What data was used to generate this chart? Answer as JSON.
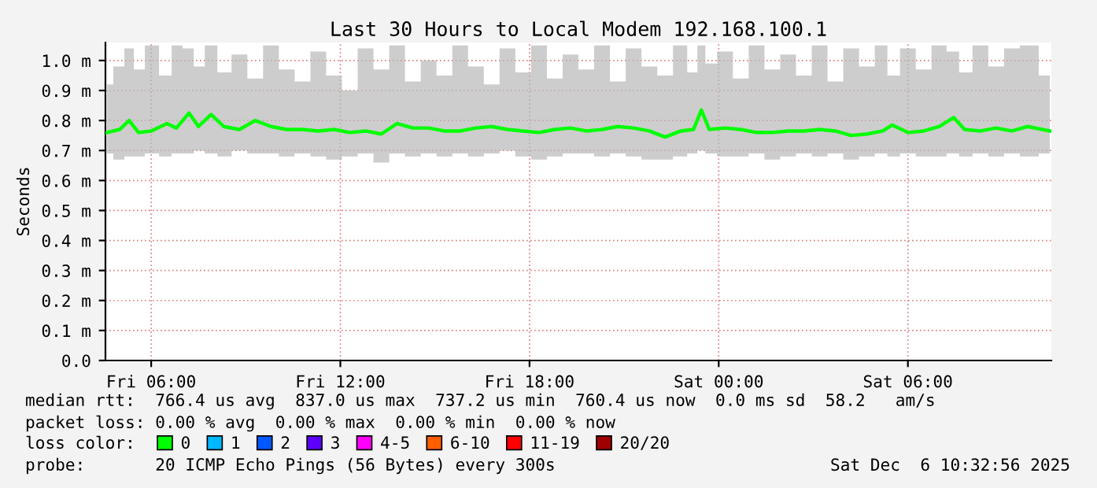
{
  "chart_data": {
    "type": "line",
    "title": "Last 30 Hours to Local Modem 192.168.100.1",
    "ylabel": "Seconds",
    "x": [
      "2025-12-05T04:36",
      "2025-12-05T05:00",
      "2025-12-05T05:18",
      "2025-12-05T05:36",
      "2025-12-05T06:00",
      "2025-12-05T06:30",
      "2025-12-05T06:48",
      "2025-12-05T07:12",
      "2025-12-05T07:30",
      "2025-12-05T07:54",
      "2025-12-05T08:18",
      "2025-12-05T08:48",
      "2025-12-05T09:18",
      "2025-12-05T09:48",
      "2025-12-05T10:18",
      "2025-12-05T10:48",
      "2025-12-05T11:18",
      "2025-12-05T11:48",
      "2025-12-05T12:18",
      "2025-12-05T12:48",
      "2025-12-05T13:18",
      "2025-12-05T13:48",
      "2025-12-05T14:18",
      "2025-12-05T14:48",
      "2025-12-05T15:18",
      "2025-12-05T15:48",
      "2025-12-05T16:18",
      "2025-12-05T16:48",
      "2025-12-05T17:18",
      "2025-12-05T17:48",
      "2025-12-05T18:18",
      "2025-12-05T18:48",
      "2025-12-05T19:18",
      "2025-12-05T19:48",
      "2025-12-05T20:18",
      "2025-12-05T20:48",
      "2025-12-05T21:18",
      "2025-12-05T21:48",
      "2025-12-05T22:18",
      "2025-12-05T22:48",
      "2025-12-05T23:12",
      "2025-12-05T23:27",
      "2025-12-05T23:42",
      "2025-12-06T00:12",
      "2025-12-06T00:42",
      "2025-12-06T01:12",
      "2025-12-06T01:42",
      "2025-12-06T02:12",
      "2025-12-06T02:42",
      "2025-12-06T03:12",
      "2025-12-06T03:42",
      "2025-12-06T04:12",
      "2025-12-06T04:42",
      "2025-12-06T05:12",
      "2025-12-06T05:30",
      "2025-12-06T06:00",
      "2025-12-06T06:30",
      "2025-12-06T07:00",
      "2025-12-06T07:27",
      "2025-12-06T07:48",
      "2025-12-06T08:18",
      "2025-12-06T08:48",
      "2025-12-06T09:18",
      "2025-12-06T09:48",
      "2025-12-06T10:30"
    ],
    "series": [
      {
        "name": "0",
        "color": "#00ff00",
        "values": [
          0.76,
          0.77,
          0.8,
          0.76,
          0.765,
          0.79,
          0.775,
          0.825,
          0.78,
          0.82,
          0.78,
          0.77,
          0.8,
          0.78,
          0.77,
          0.77,
          0.765,
          0.77,
          0.76,
          0.765,
          0.755,
          0.79,
          0.775,
          0.775,
          0.765,
          0.765,
          0.775,
          0.78,
          0.77,
          0.765,
          0.76,
          0.77,
          0.775,
          0.765,
          0.77,
          0.78,
          0.775,
          0.765,
          0.745,
          0.765,
          0.77,
          0.835,
          0.77,
          0.775,
          0.77,
          0.76,
          0.76,
          0.765,
          0.765,
          0.77,
          0.765,
          0.75,
          0.755,
          0.765,
          0.785,
          0.76,
          0.765,
          0.78,
          0.81,
          0.77,
          0.765,
          0.775,
          0.765,
          0.78,
          0.765
        ],
        "lower": [
          0.69,
          0.67,
          0.68,
          0.68,
          0.69,
          0.68,
          0.69,
          0.69,
          0.7,
          0.69,
          0.68,
          0.7,
          0.69,
          0.69,
          0.68,
          0.69,
          0.68,
          0.67,
          0.68,
          0.69,
          0.66,
          0.69,
          0.68,
          0.69,
          0.68,
          0.69,
          0.68,
          0.69,
          0.7,
          0.68,
          0.67,
          0.68,
          0.69,
          0.69,
          0.68,
          0.69,
          0.68,
          0.67,
          0.67,
          0.68,
          0.69,
          0.7,
          0.69,
          0.68,
          0.68,
          0.69,
          0.67,
          0.68,
          0.69,
          0.68,
          0.69,
          0.67,
          0.68,
          0.69,
          0.68,
          0.69,
          0.68,
          0.68,
          0.69,
          0.68,
          0.69,
          0.68,
          0.69,
          0.68,
          0.69
        ],
        "upper": [
          0.92,
          0.98,
          1.04,
          0.97,
          1.05,
          0.95,
          1.05,
          1.04,
          0.98,
          1.05,
          0.96,
          1.02,
          0.94,
          1.05,
          0.97,
          0.93,
          1.03,
          0.95,
          0.9,
          1.04,
          0.97,
          1.05,
          0.93,
          1.0,
          0.95,
          1.05,
          0.98,
          0.92,
          1.04,
          0.96,
          1.05,
          0.94,
          1.02,
          0.97,
          1.05,
          0.93,
          1.04,
          0.98,
          0.95,
          1.05,
          0.96,
          1.05,
          0.99,
          1.03,
          0.94,
          1.05,
          0.97,
          1.02,
          0.95,
          1.05,
          0.93,
          1.04,
          0.98,
          1.05,
          0.95,
          1.04,
          0.97,
          1.05,
          1.03,
          0.96,
          1.05,
          0.98,
          1.04,
          1.05,
          0.95
        ]
      },
      {
        "name": "1",
        "color": "#00b8ff",
        "values": [
          null,
          null,
          null,
          null,
          null,
          null,
          null,
          null,
          null,
          null,
          null,
          null,
          null,
          null,
          null,
          null,
          null,
          null,
          null,
          null,
          null,
          null,
          null,
          null,
          null,
          null,
          null,
          null,
          null,
          null,
          null,
          null,
          null,
          null,
          null,
          null,
          null,
          null,
          null,
          null,
          null,
          null,
          null,
          null,
          null,
          null,
          null,
          null,
          null,
          null,
          null,
          null,
          null,
          null,
          null,
          null,
          null,
          null,
          null,
          null,
          null,
          null,
          null,
          null,
          null
        ]
      },
      {
        "name": "2",
        "color": "#0059ff",
        "values": [
          null,
          null,
          null,
          null,
          null,
          null,
          null,
          null,
          null,
          null,
          null,
          null,
          null,
          null,
          null,
          null,
          null,
          null,
          null,
          null,
          null,
          null,
          null,
          null,
          null,
          null,
          null,
          null,
          null,
          null,
          null,
          null,
          null,
          null,
          null,
          null,
          null,
          null,
          null,
          null,
          null,
          null,
          null,
          null,
          null,
          null,
          null,
          null,
          null,
          null,
          null,
          null,
          null,
          null,
          null,
          null,
          null,
          null,
          null,
          null,
          null,
          null,
          null,
          null,
          null
        ]
      },
      {
        "name": "3",
        "color": "#5e00ff",
        "values": [
          null,
          null,
          null,
          null,
          null,
          null,
          null,
          null,
          null,
          null,
          null,
          null,
          null,
          null,
          null,
          null,
          null,
          null,
          null,
          null,
          null,
          null,
          null,
          null,
          null,
          null,
          null,
          null,
          null,
          null,
          null,
          null,
          null,
          null,
          null,
          null,
          null,
          null,
          null,
          null,
          null,
          null,
          null,
          null,
          null,
          null,
          null,
          null,
          null,
          null,
          null,
          null,
          null,
          null,
          null,
          null,
          null,
          null,
          null,
          null,
          null,
          null,
          null,
          null,
          null
        ]
      },
      {
        "name": "4-5",
        "color": "#ff00ff",
        "values": [
          null,
          null,
          null,
          null,
          null,
          null,
          null,
          null,
          null,
          null,
          null,
          null,
          null,
          null,
          null,
          null,
          null,
          null,
          null,
          null,
          null,
          null,
          null,
          null,
          null,
          null,
          null,
          null,
          null,
          null,
          null,
          null,
          null,
          null,
          null,
          null,
          null,
          null,
          null,
          null,
          null,
          null,
          null,
          null,
          null,
          null,
          null,
          null,
          null,
          null,
          null,
          null,
          null,
          null,
          null,
          null,
          null,
          null,
          null,
          null,
          null,
          null,
          null,
          null,
          null
        ]
      },
      {
        "name": "6-10",
        "color": "#ff5e00",
        "values": [
          null,
          null,
          null,
          null,
          null,
          null,
          null,
          null,
          null,
          null,
          null,
          null,
          null,
          null,
          null,
          null,
          null,
          null,
          null,
          null,
          null,
          null,
          null,
          null,
          null,
          null,
          null,
          null,
          null,
          null,
          null,
          null,
          null,
          null,
          null,
          null,
          null,
          null,
          null,
          null,
          null,
          null,
          null,
          null,
          null,
          null,
          null,
          null,
          null,
          null,
          null,
          null,
          null,
          null,
          null,
          null,
          null,
          null,
          null,
          null,
          null,
          null,
          null,
          null,
          null
        ]
      },
      {
        "name": "11-19",
        "color": "#ff0000",
        "values": [
          null,
          null,
          null,
          null,
          null,
          null,
          null,
          null,
          null,
          null,
          null,
          null,
          null,
          null,
          null,
          null,
          null,
          null,
          null,
          null,
          null,
          null,
          null,
          null,
          null,
          null,
          null,
          null,
          null,
          null,
          null,
          null,
          null,
          null,
          null,
          null,
          null,
          null,
          null,
          null,
          null,
          null,
          null,
          null,
          null,
          null,
          null,
          null,
          null,
          null,
          null,
          null,
          null,
          null,
          null,
          null,
          null,
          null,
          null,
          null,
          null,
          null,
          null,
          null,
          null
        ]
      },
      {
        "name": "20/20",
        "color": "#a10000",
        "values": [
          null,
          null,
          null,
          null,
          null,
          null,
          null,
          null,
          null,
          null,
          null,
          null,
          null,
          null,
          null,
          null,
          null,
          null,
          null,
          null,
          null,
          null,
          null,
          null,
          null,
          null,
          null,
          null,
          null,
          null,
          null,
          null,
          null,
          null,
          null,
          null,
          null,
          null,
          null,
          null,
          null,
          null,
          null,
          null,
          null,
          null,
          null,
          null,
          null,
          null,
          null,
          null,
          null,
          null,
          null,
          null,
          null,
          null,
          null,
          null,
          null,
          null,
          null,
          null,
          null
        ]
      }
    ],
    "xlim": [
      "2025-12-05T04:33",
      "2025-12-06T10:33"
    ],
    "xticks": [
      {
        "value": "2025-12-05T06:00",
        "label": "Fri 06:00"
      },
      {
        "value": "2025-12-05T12:00",
        "label": "Fri 12:00"
      },
      {
        "value": "2025-12-05T18:00",
        "label": "Fri 18:00"
      },
      {
        "value": "2025-12-06T00:00",
        "label": "Sat 00:00"
      },
      {
        "value": "2025-12-06T06:00",
        "label": "Sat 06:00"
      }
    ],
    "ylim": [
      0,
      1.06
    ],
    "yticks": [
      {
        "value": 0,
        "label": "0.0"
      },
      {
        "value": 0.1,
        "label": "0.1 m"
      },
      {
        "value": 0.2,
        "label": "0.2 m"
      },
      {
        "value": 0.3,
        "label": "0.3 m"
      },
      {
        "value": 0.4,
        "label": "0.4 m"
      },
      {
        "value": 0.5,
        "label": "0.5 m"
      },
      {
        "value": 0.6,
        "label": "0.6 m"
      },
      {
        "value": 0.7,
        "label": "0.7 m"
      },
      {
        "value": 0.8,
        "label": "0.8 m"
      },
      {
        "value": 0.9,
        "label": "0.9 m"
      },
      {
        "value": 1.0,
        "label": "1.0 m"
      }
    ],
    "grid": true,
    "legend": "bottom",
    "legend_title": "loss color:",
    "annotations": [
      "median rtt:  766.4 us avg  837.0 us max  737.2 us min  760.4 us now  0.0 ms sd  58.2   am/s",
      "packet loss: 0.00 % avg  0.00 % max  0.00 % min  0.00 % now",
      "probe:       20 ICMP Echo Pings (56 Bytes) every 300s",
      "Sat Dec  6 10:32:56 2025"
    ]
  }
}
